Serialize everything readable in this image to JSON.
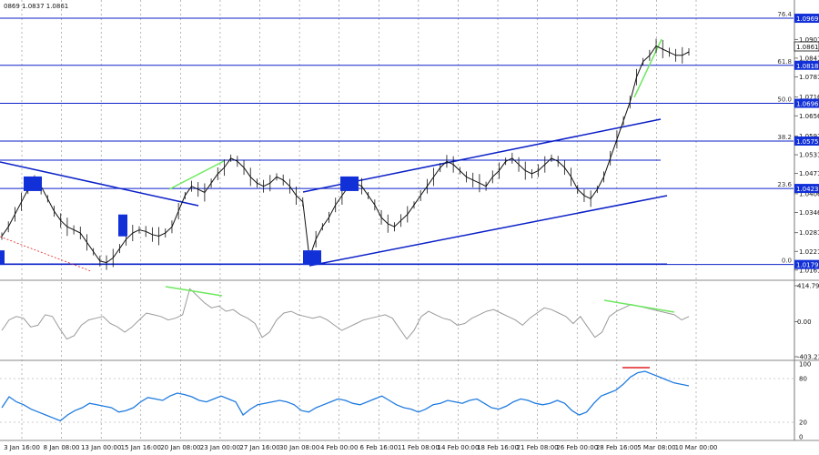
{
  "header": {
    "ohlc_text": "0869 1.0837 1.0861"
  },
  "chart_data": [
    {
      "type": "line",
      "name": "main",
      "price_ticks": [
        "1.0901",
        "1.0841",
        "1.0781",
        "1.0716",
        "1.0656",
        "1.0591",
        "1.0531",
        "1.0471",
        "1.0406",
        "1.0346",
        "1.0281",
        "1.0221",
        "1.0161"
      ],
      "price_range": [
        1.014,
        1.101
      ],
      "dates": [
        "3 Jan 16:00",
        "8 Jan 08:00",
        "13 Jan 00:00",
        "15 Jan 16:00",
        "20 Jan 08:00",
        "23 Jan 00:00",
        "27 Jan 16:00",
        "30 Jan 08:00",
        "4 Feb 00:00",
        "6 Feb 16:00",
        "11 Feb 08:00",
        "14 Feb 00:00",
        "18 Feb 16:00",
        "21 Feb 08:00",
        "26 Feb 00:00",
        "28 Feb 16:00",
        "5 Mar 08:00",
        "10 Mar 00:00"
      ],
      "fib_levels": [
        {
          "label": "76.4",
          "value": 1.0969,
          "box": "1.0969"
        },
        {
          "label": "61.8",
          "value": 1.0818,
          "box": "1.0818"
        },
        {
          "label": "50.0",
          "value": 1.0696,
          "box": "1.0696"
        },
        {
          "label": "38.2",
          "value": 1.0575,
          "box": "1.0575"
        },
        {
          "label": "23.6",
          "value": 1.0423,
          "box": "1.0423"
        },
        {
          "label": "0.0",
          "value": 1.0179,
          "box": "1.0179"
        }
      ],
      "current_price": "1.0861",
      "price_series": [
        1.027,
        1.03,
        1.034,
        1.038,
        1.042,
        1.0445,
        1.043,
        1.039,
        1.035,
        1.032,
        1.03,
        1.029,
        1.028,
        1.025,
        1.022,
        1.019,
        1.0185,
        1.02,
        1.023,
        1.026,
        1.028,
        1.029,
        1.0285,
        1.0275,
        1.027,
        1.028,
        1.03,
        1.035,
        1.04,
        1.043,
        1.042,
        1.041,
        1.044,
        1.047,
        1.049,
        1.052,
        1.051,
        1.049,
        1.046,
        1.044,
        1.043,
        1.044,
        1.046,
        1.045,
        1.043,
        1.04,
        1.038,
        1.02,
        1.026,
        1.03,
        1.033,
        1.037,
        1.04,
        1.043,
        1.044,
        1.043,
        1.04,
        1.037,
        1.033,
        1.031,
        1.03,
        1.032,
        1.034,
        1.037,
        1.04,
        1.043,
        1.046,
        1.049,
        1.051,
        1.05,
        1.048,
        1.046,
        1.045,
        1.044,
        1.043,
        1.046,
        1.048,
        1.051,
        1.052,
        1.05,
        1.048,
        1.047,
        1.048,
        1.05,
        1.052,
        1.051,
        1.049,
        1.046,
        1.042,
        1.04,
        1.039,
        1.042,
        1.046,
        1.052,
        1.058,
        1.064,
        1.07,
        1.078,
        1.083,
        1.085,
        1.088,
        1.087,
        1.086,
        1.085,
        1.085,
        1.0861
      ],
      "rect_markers": [
        {
          "x": 0,
          "price": 1.0201
        },
        {
          "x": 30,
          "price": 1.0438
        },
        {
          "x": 134,
          "price": 1.0316
        },
        {
          "x": 337,
          "price": 1.0201
        },
        {
          "x": 378,
          "price": 1.0438
        }
      ]
    },
    {
      "type": "line",
      "name": "cci",
      "ticks": [
        "414.7912",
        "0.00",
        "-403.234"
      ],
      "range": [
        -403.234,
        414.7912
      ],
      "values": [
        -100,
        20,
        60,
        40,
        -60,
        -40,
        80,
        60,
        -80,
        -200,
        -160,
        -40,
        20,
        40,
        60,
        -20,
        -60,
        -120,
        -60,
        20,
        100,
        80,
        60,
        20,
        40,
        80,
        380,
        300,
        220,
        160,
        180,
        120,
        140,
        80,
        40,
        -20,
        -180,
        -120,
        20,
        100,
        120,
        80,
        60,
        40,
        60,
        20,
        -40,
        -100,
        -60,
        -20,
        20,
        40,
        60,
        80,
        40,
        -80,
        -200,
        -100,
        60,
        120,
        80,
        40,
        20,
        -40,
        -20,
        40,
        80,
        120,
        140,
        100,
        60,
        20,
        -40,
        40,
        100,
        160,
        140,
        100,
        60,
        -20,
        60,
        -60,
        -180,
        -120,
        60,
        120,
        160,
        200,
        180,
        160,
        140,
        120,
        100,
        80,
        20,
        60
      ],
      "divergence_series": "CCI"
    },
    {
      "type": "line",
      "name": "stochastic",
      "ticks": [
        "100",
        "80",
        "20",
        "0"
      ],
      "range": [
        0,
        100
      ],
      "values": [
        40,
        55,
        48,
        44,
        38,
        34,
        30,
        26,
        22,
        30,
        36,
        40,
        46,
        44,
        42,
        40,
        34,
        36,
        40,
        48,
        54,
        52,
        50,
        56,
        60,
        58,
        55,
        50,
        48,
        52,
        56,
        52,
        48,
        30,
        38,
        44,
        46,
        48,
        50,
        48,
        44,
        36,
        34,
        40,
        44,
        48,
        52,
        50,
        46,
        44,
        48,
        52,
        56,
        50,
        44,
        40,
        38,
        34,
        38,
        44,
        46,
        50,
        48,
        46,
        50,
        52,
        46,
        40,
        38,
        42,
        48,
        52,
        50,
        46,
        44,
        46,
        50,
        46,
        36,
        30,
        34,
        46,
        56,
        60,
        64,
        72,
        82,
        88,
        90,
        86,
        82,
        78,
        74,
        72,
        70
      ],
      "hline": 80
    }
  ],
  "colors": {
    "fib": "#0b20c8",
    "trend": "#0b20c8",
    "price": "#111111",
    "cci": "#9a9a9a",
    "stoch": "#1f7be0",
    "green": "#6ee85f",
    "red": "#e02020",
    "box": "#1230d8"
  }
}
